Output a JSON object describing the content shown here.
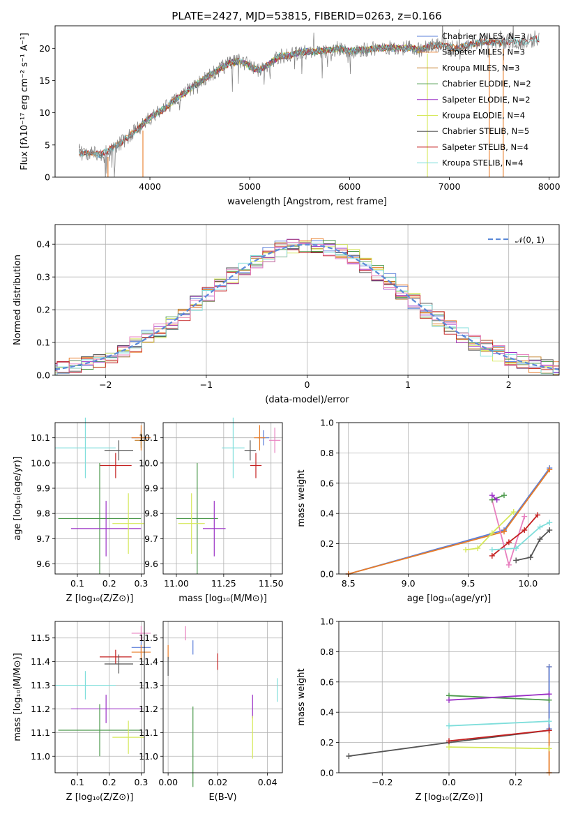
{
  "title": "PLATE=2427, MJD=53815, FIBERID=0263, z=0.166",
  "chart_data": [
    {
      "id": "spectrum",
      "type": "line",
      "xlabel": "wavelength [Angstrom, rest frame]",
      "ylabel": "Flux [fλ10⁻¹⁷ erg cm⁻² s⁻¹ A⁻¹]",
      "xlim": [
        3050,
        8100
      ],
      "ylim": [
        0,
        23.5
      ],
      "xticks": [
        4000,
        5000,
        6000,
        7000,
        8000
      ],
      "yticks": [
        0,
        5,
        10,
        15,
        20
      ],
      "grid": false,
      "legend_position": "top-right",
      "envelope": {
        "x": [
          3280,
          3400,
          3500,
          3600,
          3700,
          3800,
          3900,
          4000,
          4100,
          4200,
          4300,
          4400,
          4500,
          4600,
          4700,
          4800,
          4900,
          5000,
          5100,
          5200,
          5300,
          5400,
          5500,
          5600,
          5700,
          5800,
          5900,
          6000,
          6100,
          6200,
          6300,
          6400,
          6500,
          6600,
          6700,
          6800,
          6900,
          7000,
          7100,
          7200,
          7300,
          7400,
          7500,
          7600,
          7700,
          7800,
          7900
        ],
        "y": [
          3.8,
          3.7,
          3.5,
          4.3,
          5.2,
          6.5,
          7.8,
          9.2,
          10.2,
          11.3,
          12.6,
          13.6,
          14.8,
          15.8,
          16.8,
          17.7,
          18.0,
          17.2,
          16.6,
          17.6,
          18.8,
          18.9,
          19.4,
          19.5,
          19.6,
          19.7,
          20.0,
          19.5,
          19.7,
          19.8,
          20.0,
          20.1,
          20.0,
          20.1,
          19.7,
          20.3,
          20.5,
          20.2,
          20.0,
          20.6,
          20.9,
          21.0,
          20.8,
          21.1,
          20.9,
          21.2,
          21.5
        ]
      },
      "series": [
        {
          "name": "Chabrier MILES, N_SSP=3",
          "color": "#5b7fd9",
          "xrange": [
            3290,
            7560
          ]
        },
        {
          "name": "Salpeter MILES, N_SSP=3",
          "color": "#e87c28",
          "xrange": [
            3290,
            7560
          ]
        },
        {
          "name": "Kroupa MILES, N_SSP=3",
          "color": "#c07a21",
          "xrange": [
            3290,
            7560
          ]
        },
        {
          "name": "Chabrier ELODIE, N_SSP=2",
          "color": "#4d9a4d",
          "xrange": [
            3900,
            6800
          ]
        },
        {
          "name": "Salpeter ELODIE, N_SSP=2",
          "color": "#9b30c6",
          "xrange": [
            3900,
            6800
          ]
        },
        {
          "name": "Kroupa ELODIE, N_SSP=4",
          "color": "#d6e85a",
          "xrange": [
            3900,
            6800
          ]
        },
        {
          "name": "Chabrier STELIB, N_SSP=5",
          "color": "#555555",
          "xrange": [
            3290,
            7900
          ]
        },
        {
          "name": "Salpeter STELIB, N_SSP=4",
          "color": "#c42020",
          "xrange": [
            3290,
            7900
          ]
        },
        {
          "name": "Kroupa STELIB, N_SSP=4",
          "color": "#7fdedb",
          "xrange": [
            3290,
            7900
          ]
        }
      ],
      "data_color": "#808080"
    },
    {
      "id": "residuals",
      "type": "histogram",
      "xlabel": "(data-model)/error",
      "ylabel": "Normed distribution",
      "xlim": [
        -2.5,
        2.5
      ],
      "ylim": [
        0,
        0.46
      ],
      "xticks": [
        -2,
        -1,
        0,
        1,
        2
      ],
      "yticks": [
        0.0,
        0.1,
        0.2,
        0.3,
        0.4
      ],
      "grid": true,
      "legend_position": "top-right",
      "reference": {
        "name": "𝒩(0, 1)",
        "color": "#5b8ad8"
      },
      "bin_width": 0.12
    },
    {
      "id": "age-vs-Z",
      "type": "errorbar",
      "xlabel": "Z [log₁₀(Z/Z⊙)]",
      "ylabel": "age  [log₁₀(age/yr)]",
      "xlim": [
        0.03,
        0.31
      ],
      "ylim": [
        9.56,
        10.16
      ],
      "xticks": [
        0.1,
        0.2,
        0.3
      ],
      "yticks": [
        9.6,
        9.7,
        9.8,
        9.9,
        10.0,
        10.1
      ],
      "grid": true,
      "points": [
        {
          "color": "#5b7fd9",
          "x": 0.3,
          "xerr": 0.03,
          "y": 10.1,
          "yerr": 0.03
        },
        {
          "color": "#e87c28",
          "x": 0.3,
          "xerr": 0.03,
          "y": 10.1,
          "yerr": 0.05
        },
        {
          "color": "#c07a21",
          "x": 0.3,
          "xerr": 0.02,
          "y": 10.09,
          "yerr": 0.03
        },
        {
          "color": "#7fdedb",
          "x": 0.125,
          "xerr": 0.095,
          "y": 10.06,
          "yerr": 0.12
        },
        {
          "color": "#555555",
          "x": 0.23,
          "xerr": 0.045,
          "y": 10.05,
          "yerr": 0.04
        },
        {
          "color": "#c42020",
          "x": 0.22,
          "xerr": 0.05,
          "y": 9.99,
          "yerr": 0.05
        },
        {
          "color": "#4d9a4d",
          "x": 0.17,
          "xerr": 0.13,
          "y": 9.78,
          "yerr": 0.22
        },
        {
          "color": "#9b30c6",
          "x": 0.19,
          "xerr": 0.11,
          "y": 9.74,
          "yerr": 0.11
        },
        {
          "color": "#d6e85a",
          "x": 0.26,
          "xerr": 0.05,
          "y": 9.76,
          "yerr": 0.12
        }
      ]
    },
    {
      "id": "age-vs-mass",
      "type": "errorbar",
      "xlabel": "mass [log₁₀(M/M⊙)]",
      "ylabel": "",
      "xlim": [
        10.93,
        11.56
      ],
      "ylim": [
        9.56,
        10.16
      ],
      "xticks": [
        11.0,
        11.25,
        11.5
      ],
      "yticks": [
        9.6,
        9.7,
        9.8,
        9.9,
        10.0,
        10.1
      ],
      "grid": true,
      "points": [
        {
          "color": "#5b7fd9",
          "x": 11.46,
          "xerr": 0.03,
          "y": 10.1,
          "yerr": 0.03
        },
        {
          "color": "#e87c28",
          "x": 11.44,
          "xerr": 0.03,
          "y": 10.1,
          "yerr": 0.05
        },
        {
          "color": "#e87fbf",
          "x": 11.52,
          "xerr": 0.03,
          "y": 10.09,
          "yerr": 0.05
        },
        {
          "color": "#7fdedb",
          "x": 11.3,
          "xerr": 0.06,
          "y": 10.06,
          "yerr": 0.12
        },
        {
          "color": "#555555",
          "x": 11.39,
          "xerr": 0.03,
          "y": 10.05,
          "yerr": 0.04
        },
        {
          "color": "#c42020",
          "x": 11.42,
          "xerr": 0.03,
          "y": 9.99,
          "yerr": 0.05
        },
        {
          "color": "#4d9a4d",
          "x": 11.11,
          "xerr": 0.11,
          "y": 9.78,
          "yerr": 0.22
        },
        {
          "color": "#9b30c6",
          "x": 11.2,
          "xerr": 0.06,
          "y": 9.74,
          "yerr": 0.11
        },
        {
          "color": "#d6e85a",
          "x": 11.08,
          "xerr": 0.07,
          "y": 9.76,
          "yerr": 0.12
        }
      ]
    },
    {
      "id": "mass-weight-vs-age",
      "type": "line",
      "xlabel": "age  [log₁₀(age/yr)]",
      "ylabel": "mass weight",
      "xlim": [
        8.42,
        10.26
      ],
      "ylim": [
        0,
        1.0
      ],
      "xticks": [
        8.5,
        9.0,
        9.5,
        10.0
      ],
      "yticks": [
        0.0,
        0.2,
        0.4,
        0.6,
        0.8,
        1.0
      ],
      "grid": true,
      "series": [
        {
          "color": "#5b7fd9",
          "x": [
            8.5,
            9.8,
            10.18
          ],
          "y": [
            0.0,
            0.29,
            0.7
          ]
        },
        {
          "color": "#e87c28",
          "x": [
            8.5,
            9.8,
            10.18
          ],
          "y": [
            0.0,
            0.28,
            0.69
          ]
        },
        {
          "color": "#e87fbf",
          "x": [
            9.7,
            9.84,
            9.97
          ],
          "y": [
            0.49,
            0.06,
            0.38
          ]
        },
        {
          "color": "#4d9a4d",
          "x": [
            9.7,
            9.8
          ],
          "y": [
            0.49,
            0.52
          ]
        },
        {
          "color": "#9b30c6",
          "x": [
            9.7,
            9.74
          ],
          "y": [
            0.52,
            0.49
          ]
        },
        {
          "color": "#d6e85a",
          "x": [
            9.48,
            9.58,
            9.7,
            9.88
          ],
          "y": [
            0.16,
            0.17,
            0.27,
            0.41
          ]
        },
        {
          "color": "#555555",
          "x": [
            9.9,
            10.02,
            10.1,
            10.18
          ],
          "y": [
            0.09,
            0.11,
            0.23,
            0.29
          ]
        },
        {
          "color": "#c42020",
          "x": [
            9.7,
            9.84,
            9.97,
            10.08
          ],
          "y": [
            0.12,
            0.21,
            0.29,
            0.39
          ]
        },
        {
          "color": "#7fdedb",
          "x": [
            9.7,
            9.9,
            10.1,
            10.18
          ],
          "y": [
            0.16,
            0.17,
            0.31,
            0.34
          ]
        }
      ]
    },
    {
      "id": "mass-vs-Z",
      "type": "errorbar",
      "xlabel": "Z [log₁₀(Z/Z⊙)]",
      "ylabel": "mass [log₁₀(M/M⊙)]",
      "xlim": [
        0.03,
        0.31
      ],
      "ylim": [
        10.93,
        11.57
      ],
      "xticks": [
        0.1,
        0.2,
        0.3
      ],
      "yticks": [
        11.0,
        11.1,
        11.2,
        11.3,
        11.4,
        11.5
      ],
      "grid": true,
      "points": [
        {
          "color": "#e87fbf",
          "x": 0.3,
          "xerr": 0.03,
          "y": 11.52,
          "yerr": 0.03
        },
        {
          "color": "#5b7fd9",
          "x": 0.3,
          "xerr": 0.03,
          "y": 11.46,
          "yerr": 0.03
        },
        {
          "color": "#e87c28",
          "x": 0.3,
          "xerr": 0.03,
          "y": 11.44,
          "yerr": 0.03
        },
        {
          "color": "#c42020",
          "x": 0.22,
          "xerr": 0.05,
          "y": 11.42,
          "yerr": 0.03
        },
        {
          "color": "#555555",
          "x": 0.23,
          "xerr": 0.045,
          "y": 11.39,
          "yerr": 0.04
        },
        {
          "color": "#7fdedb",
          "x": 0.125,
          "xerr": 0.095,
          "y": 11.3,
          "yerr": 0.06
        },
        {
          "color": "#9b30c6",
          "x": 0.19,
          "xerr": 0.11,
          "y": 11.2,
          "yerr": 0.06
        },
        {
          "color": "#4d9a4d",
          "x": 0.17,
          "xerr": 0.13,
          "y": 11.11,
          "yerr": 0.11
        },
        {
          "color": "#d6e85a",
          "x": 0.26,
          "xerr": 0.05,
          "y": 11.08,
          "yerr": 0.07
        }
      ]
    },
    {
      "id": "mass-vs-EBV",
      "type": "errorbar",
      "xlabel": "E(B-V)",
      "ylabel": "",
      "xlim": [
        -0.002,
        0.046
      ],
      "ylim": [
        10.93,
        11.57
      ],
      "xticks": [
        0.0,
        0.02,
        0.04
      ],
      "yticks": [
        11.0,
        11.1,
        11.2,
        11.3,
        11.4,
        11.5
      ],
      "grid": true,
      "points": [
        {
          "color": "#e87fbf",
          "x": 0.007,
          "xerr": 0,
          "y": 11.52,
          "yerr": 0.03
        },
        {
          "color": "#5b7fd9",
          "x": 0.01,
          "xerr": 0,
          "y": 11.46,
          "yerr": 0.03
        },
        {
          "color": "#e87c28",
          "x": 0.0,
          "xerr": 0,
          "y": 11.44,
          "yerr": 0.03
        },
        {
          "color": "#555555",
          "x": 0.0,
          "xerr": 0,
          "y": 11.38,
          "yerr": 0.04
        },
        {
          "color": "#c42020",
          "x": 0.02,
          "xerr": 0,
          "y": 11.4,
          "yerr": 0.035
        },
        {
          "color": "#9b30c6",
          "x": 0.034,
          "xerr": 0,
          "y": 11.21,
          "yerr": 0.05
        },
        {
          "color": "#7fdedb",
          "x": 0.044,
          "xerr": 0,
          "y": 11.28,
          "yerr": 0.05
        },
        {
          "color": "#4d9a4d",
          "x": 0.01,
          "xerr": 0,
          "y": 11.04,
          "yerr": 0.17
        },
        {
          "color": "#d6e85a",
          "x": 0.034,
          "xerr": 0,
          "y": 11.08,
          "yerr": 0.09
        }
      ]
    },
    {
      "id": "mass-weight-vs-Z",
      "type": "line",
      "xlabel": "Z [log₁₀(Z/Z⊙)]",
      "ylabel": "mass weight",
      "xlim": [
        -0.33,
        0.33
      ],
      "ylim": [
        0,
        1.0
      ],
      "xticks": [
        -0.2,
        0.0,
        0.2
      ],
      "yticks": [
        0.0,
        0.2,
        0.4,
        0.6,
        0.8,
        1.0
      ],
      "grid": true,
      "series": [
        {
          "color": "#e87c28",
          "x": [
            0.3,
            0.3
          ],
          "y": [
            0.0,
            0.7
          ]
        },
        {
          "color": "#5b7fd9",
          "x": [
            0.3,
            0.3
          ],
          "y": [
            0.29,
            0.7
          ]
        },
        {
          "color": "#4d9a4d",
          "x": [
            0.0,
            0.3
          ],
          "y": [
            0.51,
            0.48
          ]
        },
        {
          "color": "#9b30c6",
          "x": [
            0.0,
            0.3
          ],
          "y": [
            0.48,
            0.52
          ]
        },
        {
          "color": "#7fdedb",
          "x": [
            0.0,
            0.3
          ],
          "y": [
            0.31,
            0.34
          ]
        },
        {
          "color": "#555555",
          "x": [
            -0.3,
            0.0,
            0.3
          ],
          "y": [
            0.11,
            0.2,
            0.28
          ]
        },
        {
          "color": "#c42020",
          "x": [
            0.0,
            0.3
          ],
          "y": [
            0.21,
            0.28
          ]
        },
        {
          "color": "#d6e85a",
          "x": [
            0.0,
            0.3
          ],
          "y": [
            0.17,
            0.16
          ]
        }
      ]
    }
  ]
}
